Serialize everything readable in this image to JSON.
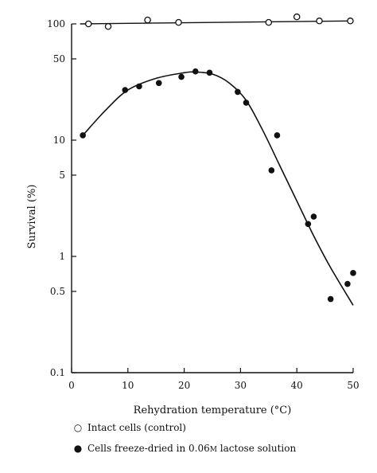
{
  "chart_data": {
    "type": "scatter",
    "xlabel": "Rehydration temperature (°C)",
    "ylabel": "Survival (%)",
    "xlim": [
      0,
      50
    ],
    "ylim": [
      0.1,
      100
    ],
    "yscale": "log",
    "grid": false,
    "x_ticks": [
      0,
      10,
      20,
      30,
      40,
      50
    ],
    "y_ticks": [
      0.1,
      0.5,
      1,
      5,
      10,
      50,
      100
    ],
    "y_tick_labels": [
      "0.1",
      "0.5",
      "1",
      "5",
      "10",
      "50",
      "100"
    ],
    "series": [
      {
        "name": "Intact cells (control)",
        "marker": "open-circle",
        "points": [
          [
            3,
            100
          ],
          [
            6.5,
            95
          ],
          [
            13.5,
            108
          ],
          [
            19,
            103
          ],
          [
            35,
            103
          ],
          [
            40,
            115
          ],
          [
            44,
            106
          ],
          [
            49.5,
            106
          ]
        ],
        "line": [
          [
            1.5,
            100
          ],
          [
            49.5,
            106
          ]
        ]
      },
      {
        "name": "Cells freeze-dried in 0.06M lactose solution",
        "marker": "filled-circle",
        "points": [
          [
            2,
            11
          ],
          [
            9.5,
            27
          ],
          [
            12,
            29
          ],
          [
            15.5,
            31
          ],
          [
            19.5,
            35
          ],
          [
            22,
            39
          ],
          [
            24.5,
            38
          ],
          [
            29.5,
            26
          ],
          [
            31,
            21
          ],
          [
            36.5,
            11
          ],
          [
            35.5,
            5.5
          ],
          [
            42,
            1.9
          ],
          [
            43,
            2.2
          ],
          [
            46,
            0.43
          ],
          [
            49,
            0.58
          ],
          [
            50,
            0.72
          ]
        ],
        "curve": [
          [
            2,
            11
          ],
          [
            6,
            18
          ],
          [
            10,
            27
          ],
          [
            15,
            34
          ],
          [
            20,
            38
          ],
          [
            22,
            38.5
          ],
          [
            25,
            37
          ],
          [
            28,
            31
          ],
          [
            31,
            22
          ],
          [
            34,
            12
          ],
          [
            37,
            6
          ],
          [
            40,
            3
          ],
          [
            43,
            1.5
          ],
          [
            46,
            0.8
          ],
          [
            50,
            0.38
          ]
        ]
      }
    ],
    "legend": {
      "open_label": "Intact cells (control)",
      "filled_label": "Cells freeze-dried in 0.06",
      "filled_unit": "M",
      "filled_tail": " lactose solution"
    }
  }
}
